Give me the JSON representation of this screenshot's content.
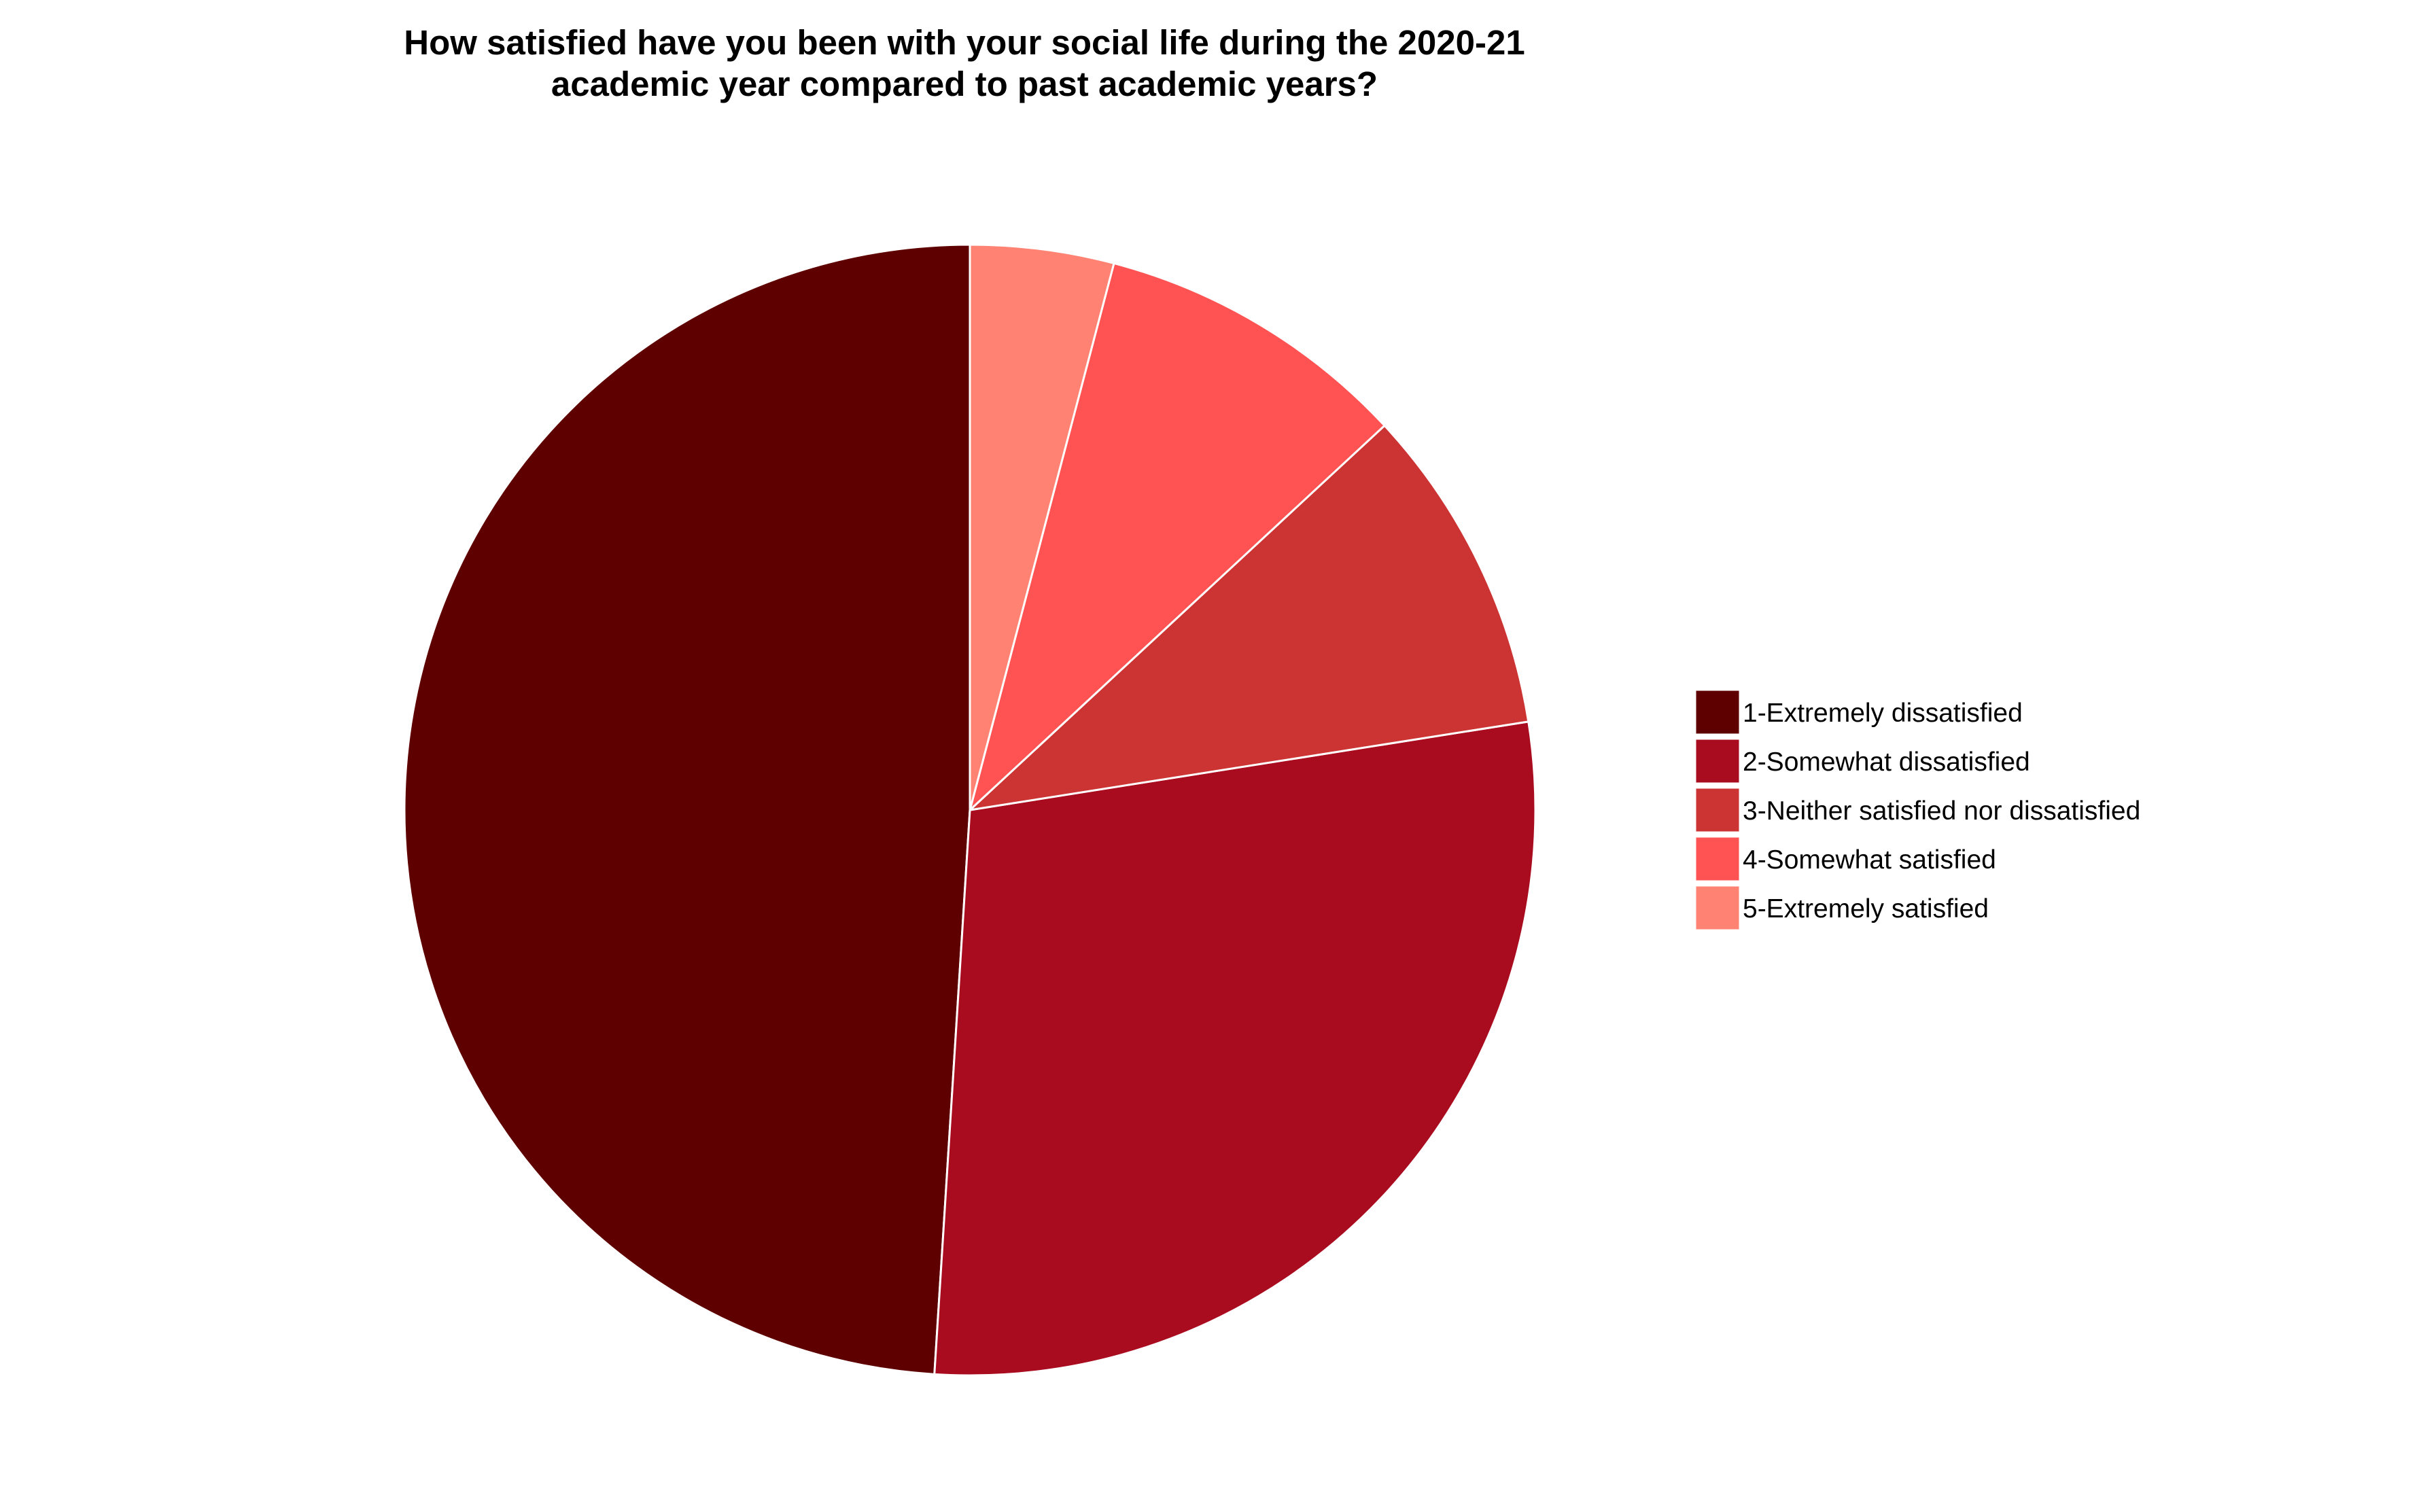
{
  "chart_data": {
    "type": "pie",
    "title_lines": [
      "How satisfied have you been with your social life during the 2020-21",
      "academic year compared to past academic years?"
    ],
    "slices": [
      {
        "label": "1-Extremely dissatisfied",
        "value": 49.0,
        "color": "#5f0000"
      },
      {
        "label": "2-Somewhat dissatisfied",
        "value": 28.5,
        "color": "#aa0c1f"
      },
      {
        "label": "3-Neither satisfied nor dissatisfied",
        "value": 9.4,
        "color": "#cc3333"
      },
      {
        "label": "4-Somewhat satisfied",
        "value": 9.0,
        "color": "#ff5252"
      },
      {
        "label": "5-Extremely satisfied",
        "value": 4.1,
        "color": "#ff8272"
      }
    ],
    "start_angle_deg": 0,
    "direction": "counterclockwise",
    "legend_position": "right"
  }
}
